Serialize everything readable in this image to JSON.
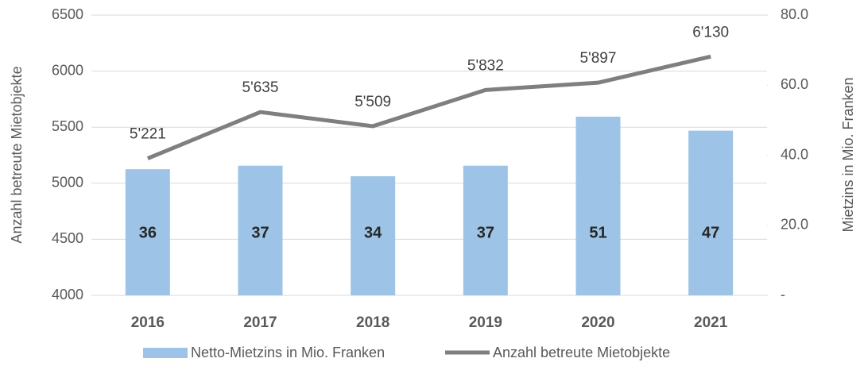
{
  "chart_data": {
    "type": "combo",
    "y_label": "Anzahl betreute Mietobjekte",
    "y2_label": "Mietzins in Mio. Franken",
    "categories": [
      "2016",
      "2017",
      "2018",
      "2019",
      "2020",
      "2021"
    ],
    "ylim": [
      4000,
      6500
    ],
    "yticks": [
      4000,
      4500,
      5000,
      5500,
      6000,
      6500
    ],
    "y2lim": [
      0,
      80
    ],
    "y2ticks": [
      {
        "value": 0,
        "label": "-"
      },
      {
        "value": 20,
        "label": "20.0"
      },
      {
        "value": 40,
        "label": "40.0"
      },
      {
        "value": 60,
        "label": "60.0"
      },
      {
        "value": 80,
        "label": "80.0"
      }
    ],
    "grid": true,
    "legend": "bottom",
    "series": [
      {
        "name": "Netto-Mietzins in Mio. Franken",
        "type": "bar",
        "axis": "y2",
        "color": "#9dc3e6",
        "values": [
          36,
          37,
          34,
          37,
          51,
          47
        ]
      },
      {
        "name": "Anzahl betreute Mietobjekte",
        "type": "line",
        "color": "#7f7f7f",
        "values": [
          5221,
          5635,
          5509,
          5832,
          5897,
          6130
        ],
        "value_labels": [
          "5'221",
          "5'635",
          "5'509",
          "5'832",
          "5'897",
          "6'130"
        ]
      }
    ]
  }
}
